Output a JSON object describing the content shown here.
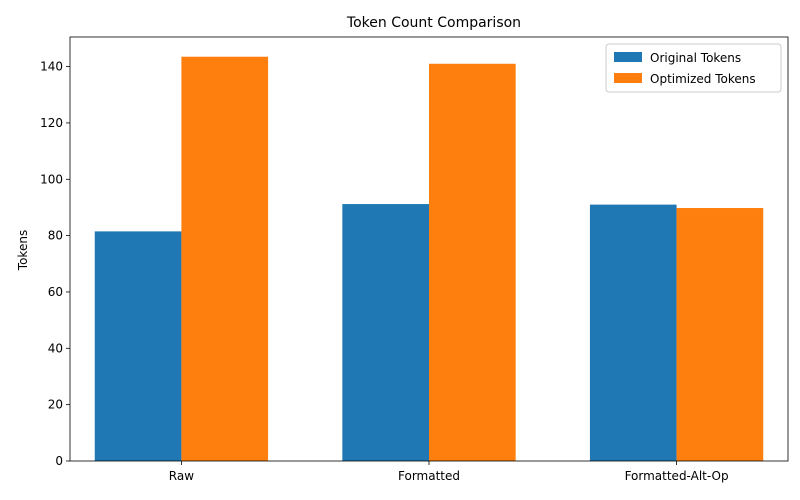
{
  "chart_data": {
    "type": "bar",
    "title": "Token Count Comparison",
    "xlabel": "",
    "ylabel": "Tokens",
    "categories": [
      "Raw",
      "Formatted",
      "Formatted-Alt-Op"
    ],
    "series": [
      {
        "name": "Original Tokens",
        "color": "#1f77b4",
        "values": [
          81.5,
          91.2,
          91.0
        ]
      },
      {
        "name": "Optimized Tokens",
        "color": "#ff7f0e",
        "values": [
          143.5,
          141.0,
          89.8
        ]
      }
    ],
    "ylim": [
      0,
      150.5
    ],
    "yticks": [
      0,
      20,
      40,
      60,
      80,
      100,
      120,
      140
    ],
    "grid": false,
    "legend_position": "top-right"
  }
}
